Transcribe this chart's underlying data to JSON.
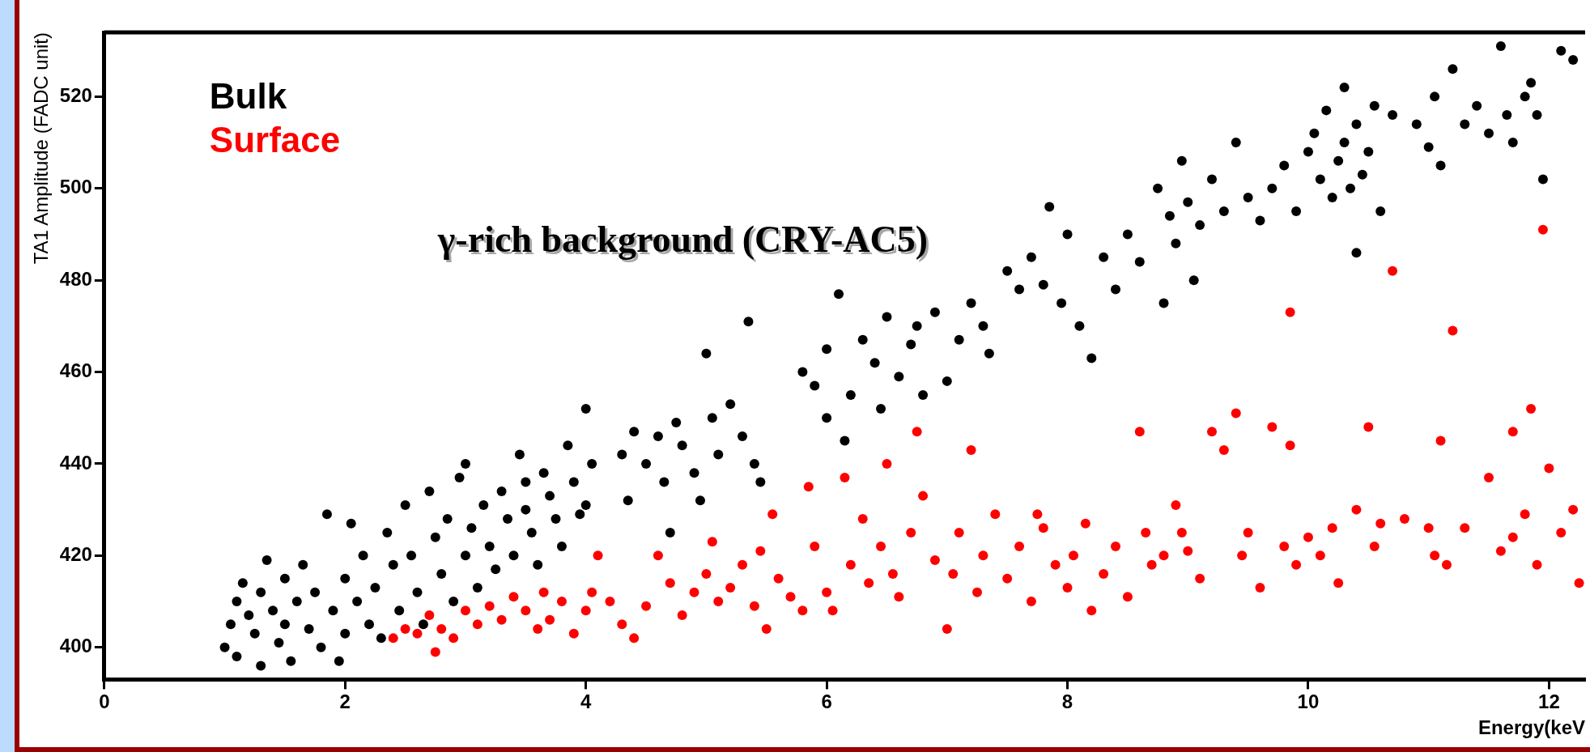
{
  "chart_data": {
    "type": "scatter",
    "xlabel": "Energy(keV",
    "ylabel": "TA1 Amplitude (FADC unit)",
    "annotations": [
      "γ-rich background (CRY-AC5)"
    ],
    "xlim": [
      0,
      12.3
    ],
    "xticks": [
      0,
      2,
      4,
      6,
      8,
      10,
      12
    ],
    "ylim": [
      393,
      534
    ],
    "yticks": [
      400,
      420,
      440,
      460,
      480,
      500,
      520
    ],
    "grid": false,
    "legend": "top left",
    "marker": "circle",
    "series": [
      {
        "name": "Bulk",
        "color": "#000000",
        "x": [
          1.0,
          1.05,
          1.1,
          1.1,
          1.15,
          1.2,
          1.25,
          1.3,
          1.3,
          1.35,
          1.4,
          1.45,
          1.5,
          1.5,
          1.55,
          1.6,
          1.65,
          1.7,
          1.75,
          1.8,
          1.85,
          1.9,
          1.95,
          2.0,
          2.0,
          2.05,
          2.1,
          2.15,
          2.2,
          2.25,
          2.3,
          2.35,
          2.4,
          2.45,
          2.5,
          2.55,
          2.6,
          2.65,
          2.7,
          2.75,
          2.8,
          2.85,
          2.9,
          2.95,
          3.0,
          3.0,
          3.05,
          3.1,
          3.15,
          3.2,
          3.25,
          3.3,
          3.35,
          3.4,
          3.45,
          3.5,
          3.5,
          3.55,
          3.6,
          3.65,
          3.7,
          3.75,
          3.8,
          3.85,
          3.9,
          3.95,
          4.0,
          4.0,
          4.05,
          4.3,
          4.35,
          4.4,
          4.5,
          4.6,
          4.65,
          4.7,
          4.75,
          4.8,
          4.9,
          4.95,
          5.0,
          5.05,
          5.1,
          5.2,
          5.3,
          5.35,
          5.4,
          5.45,
          5.8,
          5.9,
          6.0,
          6.0,
          6.1,
          6.15,
          6.2,
          6.3,
          6.4,
          6.45,
          6.5,
          6.6,
          6.7,
          6.75,
          6.8,
          6.9,
          7.0,
          7.1,
          7.2,
          7.3,
          7.35,
          7.5,
          7.6,
          7.7,
          7.8,
          7.85,
          7.95,
          8.0,
          8.1,
          8.2,
          8.3,
          8.4,
          8.5,
          8.6,
          8.75,
          8.8,
          8.85,
          8.9,
          8.95,
          9.0,
          9.05,
          9.1,
          9.2,
          9.3,
          9.4,
          9.5,
          9.6,
          9.7,
          9.8,
          9.9,
          10.0,
          10.05,
          10.1,
          10.15,
          10.2,
          10.25,
          10.3,
          10.3,
          10.35,
          10.4,
          10.4,
          10.45,
          10.5,
          10.55,
          10.6,
          10.7,
          10.9,
          11.0,
          11.05,
          11.1,
          11.2,
          11.3,
          11.4,
          11.5,
          11.6,
          11.65,
          11.7,
          11.8,
          11.85,
          11.9,
          11.95,
          12.1,
          12.2
        ],
        "values": [
          400,
          405,
          410,
          398,
          414,
          407,
          403,
          396,
          412,
          419,
          408,
          401,
          405,
          415,
          397,
          410,
          418,
          404,
          412,
          400,
          429,
          408,
          397,
          415,
          403,
          427,
          410,
          420,
          405,
          413,
          402,
          425,
          418,
          408,
          431,
          420,
          412,
          405,
          434,
          424,
          416,
          428,
          410,
          437,
          440,
          420,
          426,
          413,
          431,
          422,
          417,
          434,
          428,
          420,
          442,
          436,
          430,
          425,
          418,
          438,
          433,
          428,
          422,
          444,
          436,
          429,
          452,
          431,
          440,
          442,
          432,
          447,
          440,
          446,
          436,
          425,
          449,
          444,
          438,
          432,
          464,
          450,
          442,
          453,
          446,
          471,
          440,
          436,
          460,
          457,
          465,
          450,
          477,
          445,
          455,
          467,
          462,
          452,
          472,
          459,
          466,
          470,
          455,
          473,
          458,
          467,
          475,
          470,
          464,
          482,
          478,
          485,
          479,
          496,
          475,
          490,
          470,
          463,
          485,
          478,
          490,
          484,
          500,
          475,
          494,
          488,
          506,
          497,
          480,
          492,
          502,
          495,
          510,
          498,
          493,
          500,
          505,
          495,
          508,
          512,
          502,
          517,
          498,
          506,
          522,
          510,
          500,
          514,
          486,
          503,
          508,
          518,
          495,
          516,
          514,
          509,
          520,
          505,
          526,
          514,
          518,
          512,
          531,
          516,
          510,
          520,
          523,
          516,
          502,
          530,
          528
        ]
      },
      {
        "name": "Surface",
        "color": "#ff0000",
        "x": [
          2.4,
          2.5,
          2.6,
          2.7,
          2.75,
          2.8,
          2.9,
          3.0,
          3.1,
          3.2,
          3.3,
          3.4,
          3.5,
          3.6,
          3.65,
          3.7,
          3.8,
          3.9,
          4.0,
          4.05,
          4.1,
          4.2,
          4.3,
          4.4,
          4.5,
          4.6,
          4.7,
          4.8,
          4.9,
          5.0,
          5.05,
          5.1,
          5.2,
          5.3,
          5.4,
          5.45,
          5.5,
          5.55,
          5.6,
          5.7,
          5.8,
          5.85,
          5.9,
          6.0,
          6.05,
          6.15,
          6.2,
          6.3,
          6.35,
          6.45,
          6.5,
          6.55,
          6.6,
          6.7,
          6.75,
          6.8,
          6.9,
          7.0,
          7.05,
          7.1,
          7.2,
          7.25,
          7.3,
          7.4,
          7.5,
          7.6,
          7.7,
          7.75,
          7.8,
          7.9,
          8.0,
          8.05,
          8.15,
          8.2,
          8.3,
          8.4,
          8.5,
          8.6,
          8.65,
          8.7,
          8.8,
          8.9,
          8.95,
          9.0,
          9.1,
          9.2,
          9.3,
          9.4,
          9.45,
          9.5,
          9.6,
          9.7,
          9.8,
          9.85,
          9.9,
          10.0,
          10.1,
          10.2,
          10.25,
          10.4,
          10.5,
          10.55,
          10.6,
          10.8,
          11.0,
          11.05,
          11.1,
          11.15,
          11.3,
          11.5,
          11.6,
          11.7,
          11.8,
          11.9,
          12.0,
          12.1,
          12.2,
          11.85,
          11.7,
          9.85,
          10.7,
          11.2,
          11.95,
          12.25
        ],
        "values": [
          402,
          404,
          403,
          407,
          399,
          404,
          402,
          408,
          405,
          409,
          406,
          411,
          408,
          404,
          412,
          406,
          410,
          403,
          408,
          412,
          420,
          410,
          405,
          402,
          409,
          420,
          414,
          407,
          412,
          416,
          423,
          410,
          413,
          418,
          409,
          421,
          404,
          429,
          415,
          411,
          408,
          435,
          422,
          412,
          408,
          437,
          418,
          428,
          414,
          422,
          440,
          416,
          411,
          425,
          447,
          433,
          419,
          404,
          416,
          425,
          443,
          412,
          420,
          429,
          415,
          422,
          410,
          429,
          426,
          418,
          413,
          420,
          427,
          408,
          416,
          422,
          411,
          447,
          425,
          418,
          420,
          431,
          425,
          421,
          415,
          447,
          443,
          451,
          420,
          425,
          413,
          448,
          422,
          444,
          418,
          424,
          420,
          426,
          414,
          430,
          448,
          422,
          427,
          428,
          426,
          420,
          445,
          418,
          426,
          437,
          421,
          424,
          429,
          418,
          439,
          425,
          430,
          452,
          447,
          473,
          482,
          469,
          491,
          414
        ]
      }
    ]
  }
}
